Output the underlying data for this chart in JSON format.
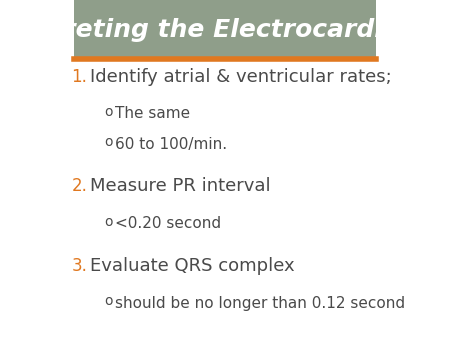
{
  "title": "Interpreting the Electrocardiogram",
  "title_color": "#ffffff",
  "title_bg_color": "#8f9e8a",
  "accent_line_color": "#e07820",
  "bg_color": "#ffffff",
  "number_color": "#e07820",
  "main_text_color": "#4a4a4a",
  "sub_text_color": "#4a4a4a",
  "items": [
    {
      "number": "1.",
      "main": "Identify atrial & ventricular rates;",
      "subs": [
        "The same",
        "60 to 100/min."
      ]
    },
    {
      "number": "2.",
      "main": "Measure PR interval",
      "subs": [
        "<0.20 second"
      ]
    },
    {
      "number": "3.",
      "main": "Evaluate QRS complex",
      "subs": [
        "should be no longer than 0.12 second"
      ]
    }
  ],
  "title_fontsize": 18,
  "main_fontsize": 13,
  "sub_fontsize": 11,
  "number_fontsize": 12
}
